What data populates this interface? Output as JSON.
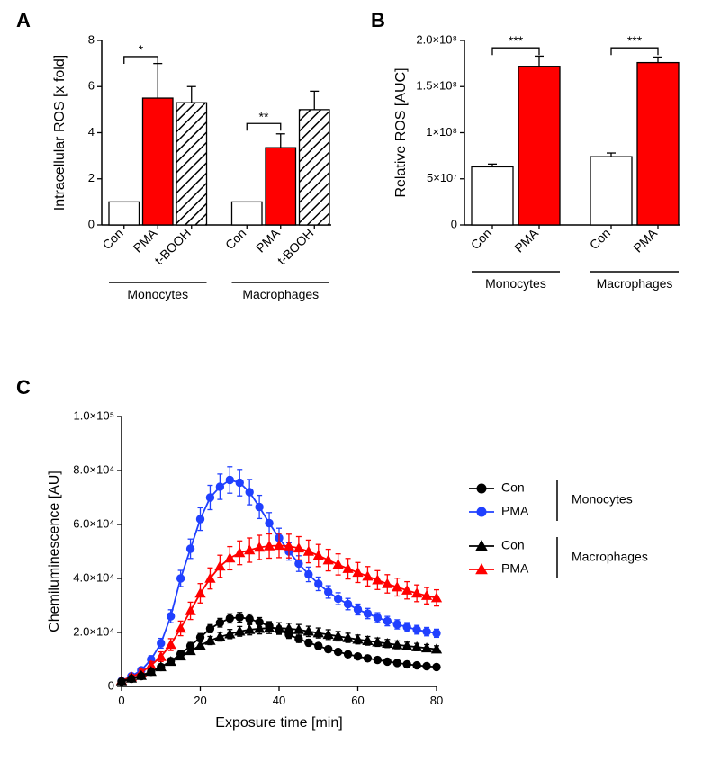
{
  "labels": {
    "panelA": "A",
    "panelB": "B",
    "panelC": "C"
  },
  "panelA": {
    "type": "bar",
    "ylabel": "Intracellular ROS [x fold]",
    "ylim": [
      0,
      8
    ],
    "ytick_step": 2,
    "label_fontsize": 16,
    "tick_fontsize": 13,
    "bar_colors": {
      "Con": "#ffffff",
      "PMA": "#ff0000",
      "t-BOOH": "hatched"
    },
    "hatch_stroke": "#000000",
    "hatch_bg": "#ffffff",
    "groups": [
      "Monocytes",
      "Macrophages"
    ],
    "categories": [
      "Con",
      "PMA",
      "t-BOOH"
    ],
    "data": {
      "Monocytes": {
        "Con": {
          "v": 1.0,
          "err": 0
        },
        "PMA": {
          "v": 5.5,
          "err": 1.5
        },
        "t-BOOH": {
          "v": 5.3,
          "err": 0.7
        }
      },
      "Macrophages": {
        "Con": {
          "v": 1.0,
          "err": 0
        },
        "PMA": {
          "v": 3.35,
          "err": 0.6
        },
        "t-BOOH": {
          "v": 5.0,
          "err": 0.8
        }
      }
    },
    "significance": [
      {
        "group": "Monocytes",
        "from": "Con",
        "to": "PMA",
        "label": "*",
        "y": 7.3
      },
      {
        "group": "Macrophages",
        "from": "Con",
        "to": "PMA",
        "label": "**",
        "y": 4.4
      }
    ]
  },
  "panelB": {
    "type": "bar",
    "ylabel": "Relative  ROS [AUC]",
    "ylim": [
      0,
      200000000.0
    ],
    "yticks": [
      0,
      50000000.0,
      100000000.0,
      150000000.0,
      200000000.0
    ],
    "ytick_labels": [
      "0",
      "5×10⁷",
      "1×10⁸",
      "1.5×10⁸",
      "2.0×10⁸"
    ],
    "label_fontsize": 16,
    "tick_fontsize": 13,
    "bar_colors": {
      "Con": "#ffffff",
      "PMA": "#ff0000"
    },
    "groups": [
      "Monocytes",
      "Macrophages"
    ],
    "categories": [
      "Con",
      "PMA"
    ],
    "data": {
      "Monocytes": {
        "Con": {
          "v": 63000000.0,
          "err": 3000000.0
        },
        "PMA": {
          "v": 172000000.0,
          "err": 11000000.0
        }
      },
      "Macrophages": {
        "Con": {
          "v": 74000000.0,
          "err": 4000000.0
        },
        "PMA": {
          "v": 176000000.0,
          "err": 6000000.0
        }
      }
    },
    "significance": [
      {
        "group": "Monocytes",
        "from": "Con",
        "to": "PMA",
        "label": "***",
        "y": 192000000.0
      },
      {
        "group": "Macrophages",
        "from": "Con",
        "to": "PMA",
        "label": "***",
        "y": 192000000.0
      }
    ]
  },
  "panelC": {
    "type": "line",
    "xlabel": "Exposure time [min]",
    "ylabel": "Chemiluminescence [AU]",
    "xlim": [
      0,
      80
    ],
    "xtick_step": 20,
    "yticks": [
      0,
      20000.0,
      40000.0,
      60000.0,
      80000.0,
      100000.0
    ],
    "ytick_labels": [
      "0",
      "2.0×10⁴",
      "4.0×10⁴",
      "6.0×10⁴",
      "8.0×10⁴",
      "1.0×10⁵"
    ],
    "label_fontsize": 16,
    "tick_fontsize": 13,
    "legend_groups": [
      "Monocytes",
      "Macrophages"
    ],
    "series": [
      {
        "name": "Con-Monocytes",
        "legend_label": "Con",
        "group": "Monocytes",
        "color": "#000000",
        "marker": "circle",
        "marker_fill": "#000000",
        "x": [
          0,
          2.5,
          5,
          7.5,
          10,
          12.5,
          15,
          17.5,
          20,
          22.5,
          25,
          27.5,
          30,
          32.5,
          35,
          37.5,
          40,
          42.5,
          45,
          47.5,
          50,
          52.5,
          55,
          57.5,
          60,
          62.5,
          65,
          67.5,
          70,
          72.5,
          75,
          77.5,
          80
        ],
        "y": [
          1800,
          2800,
          3800,
          5400,
          7200,
          9400,
          12000,
          15000,
          18200,
          21400,
          23600,
          25200,
          25600,
          25000,
          23800,
          22400,
          20800,
          19200,
          17600,
          16200,
          15000,
          13800,
          12800,
          11900,
          11100,
          10400,
          9800,
          9200,
          8700,
          8200,
          7800,
          7500,
          7200
        ],
        "err": [
          600,
          700,
          800,
          900,
          1000,
          1100,
          1200,
          1300,
          1400,
          1500,
          1600,
          1700,
          1800,
          1800,
          1700,
          1600,
          1500,
          1400,
          1300,
          1200,
          1100,
          1100,
          1000,
          1000,
          900,
          900,
          850,
          850,
          800,
          800,
          800,
          800,
          800
        ]
      },
      {
        "name": "PMA-Monocytes",
        "legend_label": "PMA",
        "group": "Monocytes",
        "color": "#2040ff",
        "marker": "circle",
        "marker_fill": "#2040ff",
        "x": [
          0,
          2.5,
          5,
          7.5,
          10,
          12.5,
          15,
          17.5,
          20,
          22.5,
          25,
          27.5,
          30,
          32.5,
          35,
          37.5,
          40,
          42.5,
          45,
          47.5,
          50,
          52.5,
          55,
          57.5,
          60,
          62.5,
          65,
          67.5,
          70,
          72.5,
          75,
          77.5,
          80
        ],
        "y": [
          2000,
          3800,
          6000,
          10000,
          16000,
          26000,
          40000,
          51000,
          62000,
          70000,
          74000,
          76500,
          75500,
          72000,
          66500,
          60500,
          55000,
          50000,
          45500,
          41500,
          38000,
          35000,
          32500,
          30500,
          28500,
          27000,
          25500,
          24200,
          23000,
          22000,
          21000,
          20300,
          19700
        ],
        "err": [
          700,
          900,
          1100,
          1400,
          1800,
          2400,
          3000,
          3600,
          4200,
          4500,
          4700,
          4900,
          4900,
          4700,
          4300,
          3900,
          3600,
          3200,
          2900,
          2700,
          2500,
          2300,
          2200,
          2100,
          2000,
          1900,
          1800,
          1750,
          1700,
          1650,
          1600,
          1550,
          1500
        ]
      },
      {
        "name": "Con-Macrophages",
        "legend_label": "Con",
        "group": "Macrophages",
        "color": "#000000",
        "marker": "triangle",
        "marker_fill": "#000000",
        "x": [
          0,
          2.5,
          5,
          7.5,
          10,
          12.5,
          15,
          17.5,
          20,
          22.5,
          25,
          27.5,
          30,
          32.5,
          35,
          37.5,
          40,
          42.5,
          45,
          47.5,
          50,
          52.5,
          55,
          57.5,
          60,
          62.5,
          65,
          67.5,
          70,
          72.5,
          75,
          77.5,
          80
        ],
        "y": [
          2000,
          3000,
          4000,
          5500,
          7200,
          9200,
          11200,
          13200,
          15200,
          17000,
          18400,
          19400,
          20400,
          21000,
          21400,
          21600,
          21600,
          21400,
          21000,
          20400,
          19800,
          19200,
          18600,
          18000,
          17400,
          16900,
          16400,
          15900,
          15400,
          15000,
          14600,
          14200,
          13800
        ],
        "err": [
          600,
          700,
          800,
          900,
          1000,
          1100,
          1200,
          1300,
          1400,
          1500,
          1600,
          1700,
          1800,
          1900,
          1950,
          2000,
          2000,
          2000,
          1950,
          1900,
          1850,
          1800,
          1750,
          1700,
          1650,
          1600,
          1550,
          1500,
          1450,
          1400,
          1350,
          1300,
          1250
        ]
      },
      {
        "name": "PMA-Macrophages",
        "legend_label": "PMA",
        "group": "Macrophages",
        "color": "#ff0000",
        "marker": "triangle",
        "marker_fill": "#ff0000",
        "x": [
          0,
          2.5,
          5,
          7.5,
          10,
          12.5,
          15,
          17.5,
          20,
          22.5,
          25,
          27.5,
          30,
          32.5,
          35,
          37.5,
          40,
          42.5,
          45,
          47.5,
          50,
          52.5,
          55,
          57.5,
          60,
          62.5,
          65,
          67.5,
          70,
          72.5,
          75,
          77.5,
          80
        ],
        "y": [
          2200,
          3500,
          5200,
          7800,
          11000,
          15500,
          21500,
          28000,
          34500,
          40000,
          44500,
          47500,
          49500,
          50500,
          51500,
          52000,
          52200,
          52000,
          51200,
          50000,
          48500,
          46800,
          45200,
          43600,
          42200,
          40800,
          39400,
          38000,
          36800,
          35600,
          34500,
          33600,
          32800
        ],
        "err": [
          700,
          900,
          1100,
          1400,
          1800,
          2200,
          2700,
          3200,
          3600,
          3900,
          4100,
          4300,
          4400,
          4500,
          4500,
          4500,
          4500,
          4400,
          4300,
          4200,
          4100,
          4000,
          3900,
          3800,
          3700,
          3600,
          3500,
          3400,
          3300,
          3200,
          3100,
          3050,
          3000
        ]
      }
    ],
    "draw_order": [
      "PMA-Monocytes",
      "PMA-Macrophages",
      "Con-Macrophages",
      "Con-Monocytes"
    ]
  },
  "colors": {
    "axis": "#000000",
    "bg": "#ffffff"
  }
}
